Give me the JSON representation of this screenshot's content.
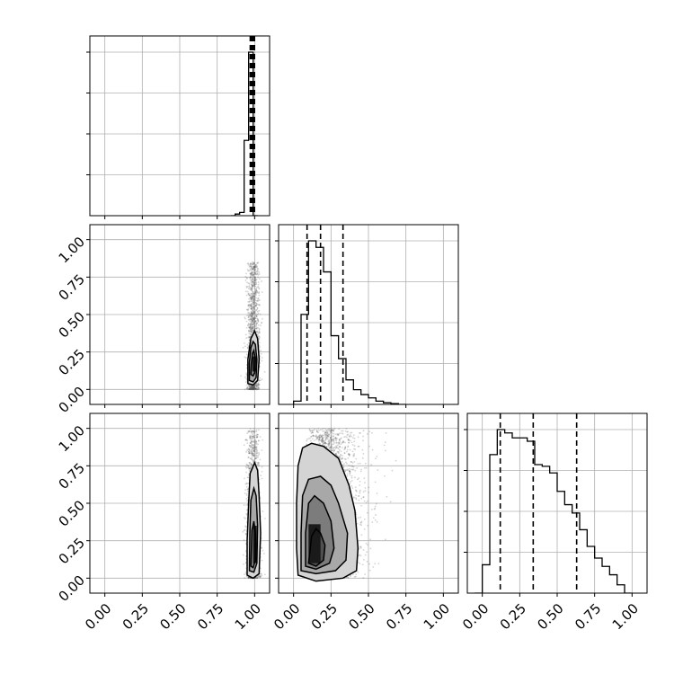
{
  "chart_data": {
    "type": "corner",
    "ticks": [
      0.0,
      0.25,
      0.5,
      0.75,
      1.0
    ],
    "tick_labels": [
      "0.00",
      "0.25",
      "0.50",
      "0.75",
      "1.00"
    ],
    "xlim": [
      -0.1,
      1.1
    ],
    "ylim": [
      -0.1,
      1.1
    ],
    "grid": true,
    "histograms": [
      {
        "param": 0,
        "bin_edges": [
          0.84,
          0.87,
          0.9,
          0.93,
          0.96,
          0.99,
          1.02
        ],
        "counts": [
          0.0,
          0.01,
          0.02,
          0.46,
          1.0,
          0.0
        ],
        "quantiles": [
          0.975,
          0.985,
          0.995
        ]
      },
      {
        "param": 1,
        "bin_edges": [
          0.0,
          0.05,
          0.1,
          0.15,
          0.2,
          0.25,
          0.3,
          0.35,
          0.4,
          0.45,
          0.5,
          0.55,
          0.6,
          0.65,
          0.7,
          0.75
        ],
        "counts": [
          0.02,
          0.55,
          1.0,
          0.96,
          0.81,
          0.42,
          0.28,
          0.15,
          0.09,
          0.06,
          0.04,
          0.02,
          0.01,
          0.005,
          0.0
        ],
        "quantiles": [
          0.09,
          0.18,
          0.33
        ]
      },
      {
        "param": 2,
        "bin_edges": [
          -0.05,
          0.0,
          0.05,
          0.1,
          0.15,
          0.2,
          0.25,
          0.3,
          0.35,
          0.4,
          0.45,
          0.5,
          0.55,
          0.6,
          0.65,
          0.7,
          0.75,
          0.8,
          0.85,
          0.9,
          0.95,
          1.0
        ],
        "counts": [
          0.0,
          0.17,
          0.83,
          0.98,
          0.96,
          0.93,
          0.93,
          0.91,
          0.77,
          0.76,
          0.72,
          0.61,
          0.53,
          0.48,
          0.38,
          0.28,
          0.21,
          0.16,
          0.11,
          0.05,
          0.0
        ],
        "quantiles": [
          0.12,
          0.34,
          0.63
        ]
      }
    ],
    "scatter_panels": [
      {
        "x_param": 0,
        "y_param": 1,
        "contours": [
          [
            [
              0.955,
              0.04
            ],
            [
              0.99,
              0.03
            ],
            [
              1.02,
              0.06
            ],
            [
              1.03,
              0.2
            ],
            [
              1.02,
              0.34
            ],
            [
              1.0,
              0.39
            ],
            [
              0.975,
              0.34
            ],
            [
              0.955,
              0.2
            ]
          ],
          [
            [
              0.965,
              0.06
            ],
            [
              0.99,
              0.05
            ],
            [
              1.01,
              0.08
            ],
            [
              1.015,
              0.2
            ],
            [
              1.005,
              0.3
            ],
            [
              0.99,
              0.32
            ],
            [
              0.975,
              0.28
            ],
            [
              0.965,
              0.18
            ]
          ],
          [
            [
              0.975,
              0.1
            ],
            [
              0.99,
              0.09
            ],
            [
              1.0,
              0.11
            ],
            [
              1.005,
              0.2
            ],
            [
              0.995,
              0.26
            ],
            [
              0.985,
              0.24
            ],
            [
              0.978,
              0.17
            ]
          ]
        ],
        "core": [
          [
            0.985,
            0.12
          ],
          [
            1.0,
            0.22
          ]
        ],
        "cloud": {
          "x_center": 0.99,
          "x_spread": 0.02,
          "y_range": [
            0.0,
            0.85
          ]
        }
      },
      {
        "x_param": 0,
        "y_param": 2,
        "contours": [
          [
            [
              0.95,
              0.02
            ],
            [
              0.99,
              0.0
            ],
            [
              1.03,
              0.03
            ],
            [
              1.04,
              0.3
            ],
            [
              1.03,
              0.55
            ],
            [
              1.02,
              0.72
            ],
            [
              1.0,
              0.77
            ],
            [
              0.97,
              0.7
            ],
            [
              0.96,
              0.5
            ],
            [
              0.95,
              0.25
            ]
          ],
          [
            [
              0.965,
              0.05
            ],
            [
              0.995,
              0.04
            ],
            [
              1.015,
              0.1
            ],
            [
              1.02,
              0.35
            ],
            [
              1.01,
              0.55
            ],
            [
              0.995,
              0.6
            ],
            [
              0.975,
              0.52
            ],
            [
              0.968,
              0.3
            ]
          ],
          [
            [
              0.975,
              0.08
            ],
            [
              0.99,
              0.07
            ],
            [
              1.005,
              0.12
            ],
            [
              1.005,
              0.3
            ],
            [
              0.995,
              0.38
            ],
            [
              0.982,
              0.32
            ]
          ]
        ],
        "core": [
          [
            0.99,
            0.1
          ],
          [
            1.0,
            0.35
          ]
        ],
        "cloud": {
          "x_center": 0.99,
          "x_spread": 0.022,
          "y_range": [
            0.0,
            1.0
          ]
        }
      },
      {
        "x_param": 1,
        "y_param": 2,
        "contours": [
          [
            [
              0.03,
              0.02
            ],
            [
              0.15,
              -0.02
            ],
            [
              0.33,
              0.0
            ],
            [
              0.42,
              0.05
            ],
            [
              0.43,
              0.2
            ],
            [
              0.41,
              0.45
            ],
            [
              0.37,
              0.62
            ],
            [
              0.3,
              0.8
            ],
            [
              0.2,
              0.88
            ],
            [
              0.12,
              0.9
            ],
            [
              0.06,
              0.87
            ],
            [
              0.03,
              0.75
            ],
            [
              0.02,
              0.5
            ],
            [
              0.02,
              0.2
            ]
          ],
          [
            [
              0.05,
              0.05
            ],
            [
              0.15,
              0.03
            ],
            [
              0.28,
              0.05
            ],
            [
              0.35,
              0.12
            ],
            [
              0.36,
              0.3
            ],
            [
              0.3,
              0.5
            ],
            [
              0.25,
              0.62
            ],
            [
              0.18,
              0.68
            ],
            [
              0.1,
              0.66
            ],
            [
              0.06,
              0.55
            ],
            [
              0.05,
              0.3
            ]
          ],
          [
            [
              0.08,
              0.08
            ],
            [
              0.15,
              0.06
            ],
            [
              0.24,
              0.1
            ],
            [
              0.27,
              0.2
            ],
            [
              0.25,
              0.38
            ],
            [
              0.2,
              0.5
            ],
            [
              0.14,
              0.55
            ],
            [
              0.1,
              0.5
            ],
            [
              0.08,
              0.3
            ]
          ],
          [
            [
              0.1,
              0.1
            ],
            [
              0.15,
              0.08
            ],
            [
              0.2,
              0.12
            ],
            [
              0.21,
              0.22
            ],
            [
              0.18,
              0.3
            ],
            [
              0.15,
              0.33
            ],
            [
              0.12,
              0.28
            ],
            [
              0.11,
              0.18
            ]
          ]
        ],
        "core": [
          [
            0.1,
            0.1
          ],
          [
            0.18,
            0.36
          ]
        ],
        "cloud": {
          "x_center": 0.2,
          "x_spread": 0.12,
          "y_range": [
            0.0,
            1.0
          ]
        }
      }
    ]
  }
}
